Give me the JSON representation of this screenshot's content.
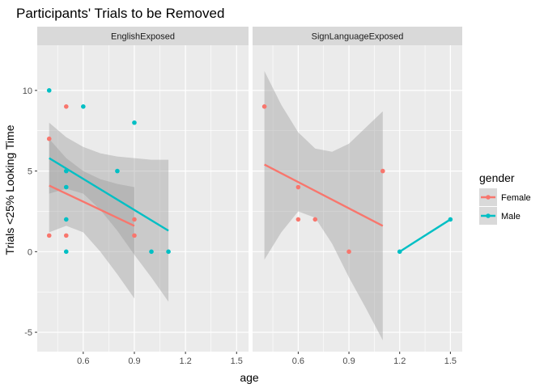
{
  "chart_data": {
    "type": "scatter",
    "title": "Participants' Trials to be Removed",
    "xlabel": "age",
    "ylabel": "Trials <25% Looking Time",
    "xlim": [
      0.33,
      1.57
    ],
    "ylim": [
      -6.2,
      12.8
    ],
    "x_ticks": [
      0.6,
      0.9,
      1.2,
      1.5
    ],
    "x_tick_labels": [
      "0.6",
      "0.9",
      "1.2",
      "1.5"
    ],
    "y_ticks": [
      -5,
      0,
      5,
      10
    ],
    "y_tick_labels": [
      "-5",
      "0",
      "5",
      "10"
    ],
    "grid": true,
    "legend": {
      "title": "gender",
      "position": "right",
      "entries": [
        {
          "label": "Female",
          "color": "#F8766D"
        },
        {
          "label": "Male",
          "color": "#00BFC4"
        }
      ]
    },
    "colors": {
      "Female": "#F8766D",
      "Male": "#00BFC4"
    },
    "panels": [
      {
        "label": "EnglishExposed",
        "points": [
          {
            "gender": "Female",
            "x": 0.4,
            "y": 7
          },
          {
            "gender": "Female",
            "x": 0.4,
            "y": 1
          },
          {
            "gender": "Female",
            "x": 0.5,
            "y": 9
          },
          {
            "gender": "Female",
            "x": 0.5,
            "y": 1
          },
          {
            "gender": "Female",
            "x": 0.9,
            "y": 2
          },
          {
            "gender": "Female",
            "x": 0.9,
            "y": 1
          },
          {
            "gender": "Male",
            "x": 0.4,
            "y": 10
          },
          {
            "gender": "Male",
            "x": 0.5,
            "y": 5
          },
          {
            "gender": "Male",
            "x": 0.5,
            "y": 4
          },
          {
            "gender": "Male",
            "x": 0.5,
            "y": 2
          },
          {
            "gender": "Male",
            "x": 0.5,
            "y": 0
          },
          {
            "gender": "Male",
            "x": 0.6,
            "y": 9
          },
          {
            "gender": "Male",
            "x": 0.8,
            "y": 5
          },
          {
            "gender": "Male",
            "x": 0.9,
            "y": 8
          },
          {
            "gender": "Male",
            "x": 1.0,
            "y": 0
          },
          {
            "gender": "Male",
            "x": 1.1,
            "y": 0
          }
        ],
        "fits": [
          {
            "gender": "Female",
            "x": [
              0.4,
              0.9
            ],
            "y": [
              4.1,
              1.6
            ],
            "band": {
              "x": [
                0.4,
                0.5,
                0.6,
                0.7,
                0.8,
                0.9
              ],
              "lower": [
                1.2,
                1.6,
                1.2,
                0.0,
                -1.4,
                -2.9
              ],
              "upper": [
                7.0,
                5.8,
                5.0,
                4.5,
                4.2,
                4.0
              ]
            }
          },
          {
            "gender": "Male",
            "x": [
              0.4,
              1.1
            ],
            "y": [
              5.8,
              1.3
            ],
            "band": {
              "x": [
                0.4,
                0.5,
                0.6,
                0.7,
                0.8,
                0.9,
                1.0,
                1.1
              ],
              "lower": [
                3.6,
                3.9,
                3.6,
                2.6,
                1.3,
                -0.2,
                -1.6,
                -3.1
              ],
              "upper": [
                8.0,
                7.1,
                6.5,
                6.1,
                5.9,
                5.8,
                5.7,
                5.7
              ]
            }
          }
        ]
      },
      {
        "label": "SignLanguageExposed",
        "points": [
          {
            "gender": "Female",
            "x": 0.4,
            "y": 9
          },
          {
            "gender": "Female",
            "x": 0.6,
            "y": 4
          },
          {
            "gender": "Female",
            "x": 0.6,
            "y": 2
          },
          {
            "gender": "Female",
            "x": 0.7,
            "y": 2
          },
          {
            "gender": "Female",
            "x": 0.9,
            "y": 0
          },
          {
            "gender": "Female",
            "x": 1.1,
            "y": 5
          },
          {
            "gender": "Male",
            "x": 1.2,
            "y": 0
          },
          {
            "gender": "Male",
            "x": 1.5,
            "y": 2
          }
        ],
        "fits": [
          {
            "gender": "Female",
            "x": [
              0.4,
              1.1
            ],
            "y": [
              5.4,
              1.6
            ],
            "band": {
              "x": [
                0.4,
                0.5,
                0.6,
                0.7,
                0.8,
                0.9,
                1.0,
                1.1
              ],
              "lower": [
                -0.5,
                1.2,
                2.5,
                2.1,
                0.5,
                -1.6,
                -3.5,
                -5.5
              ],
              "upper": [
                11.2,
                9.1,
                7.4,
                6.4,
                6.2,
                6.7,
                7.7,
                8.7
              ]
            }
          },
          {
            "gender": "Male",
            "x": [
              1.2,
              1.5
            ],
            "y": [
              0,
              2
            ]
          }
        ]
      }
    ]
  }
}
